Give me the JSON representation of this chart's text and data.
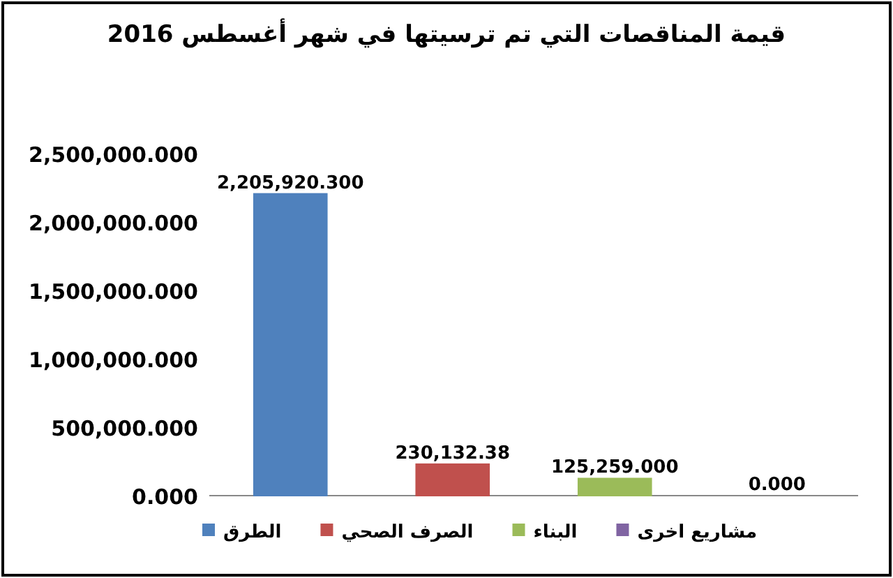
{
  "chart_data": {
    "type": "bar",
    "title": "قيمة المناقصات التي تم ترسيتها في شهر أغسطس 2016",
    "categories": [
      null,
      null,
      null,
      null
    ],
    "series": [
      {
        "name": "الطرق",
        "color": "#4f81bd",
        "values": [
          2205920.3,
          null,
          null,
          null
        ],
        "value_labels": [
          "2,205,920.300",
          null,
          null,
          null
        ]
      },
      {
        "name": "الصرف الصحي",
        "color": "#c0504d",
        "values": [
          null,
          230132.38,
          null,
          null
        ],
        "value_labels": [
          null,
          "230,132.38",
          null,
          null
        ]
      },
      {
        "name": "البناء",
        "color": "#9bbb59",
        "values": [
          null,
          null,
          125259.0,
          null
        ],
        "value_labels": [
          null,
          null,
          "125,259.000",
          null
        ]
      },
      {
        "name": "مشاريع اخرى",
        "color": "#8064a2",
        "values": [
          null,
          null,
          null,
          0.0
        ],
        "value_labels": [
          null,
          null,
          null,
          "0.000"
        ]
      }
    ],
    "ylim": [
      0,
      2500000
    ],
    "yticks": [
      {
        "value": 0,
        "label": "0.000"
      },
      {
        "value": 500000,
        "label": "500,000.000"
      },
      {
        "value": 1000000,
        "label": "1,000,000.000"
      },
      {
        "value": 1500000,
        "label": "1,500,000.000"
      },
      {
        "value": 2000000,
        "label": "2,000,000.000"
      },
      {
        "value": 2500000,
        "label": "2,500,000.000"
      }
    ],
    "grid": false,
    "legend": "bottom"
  }
}
